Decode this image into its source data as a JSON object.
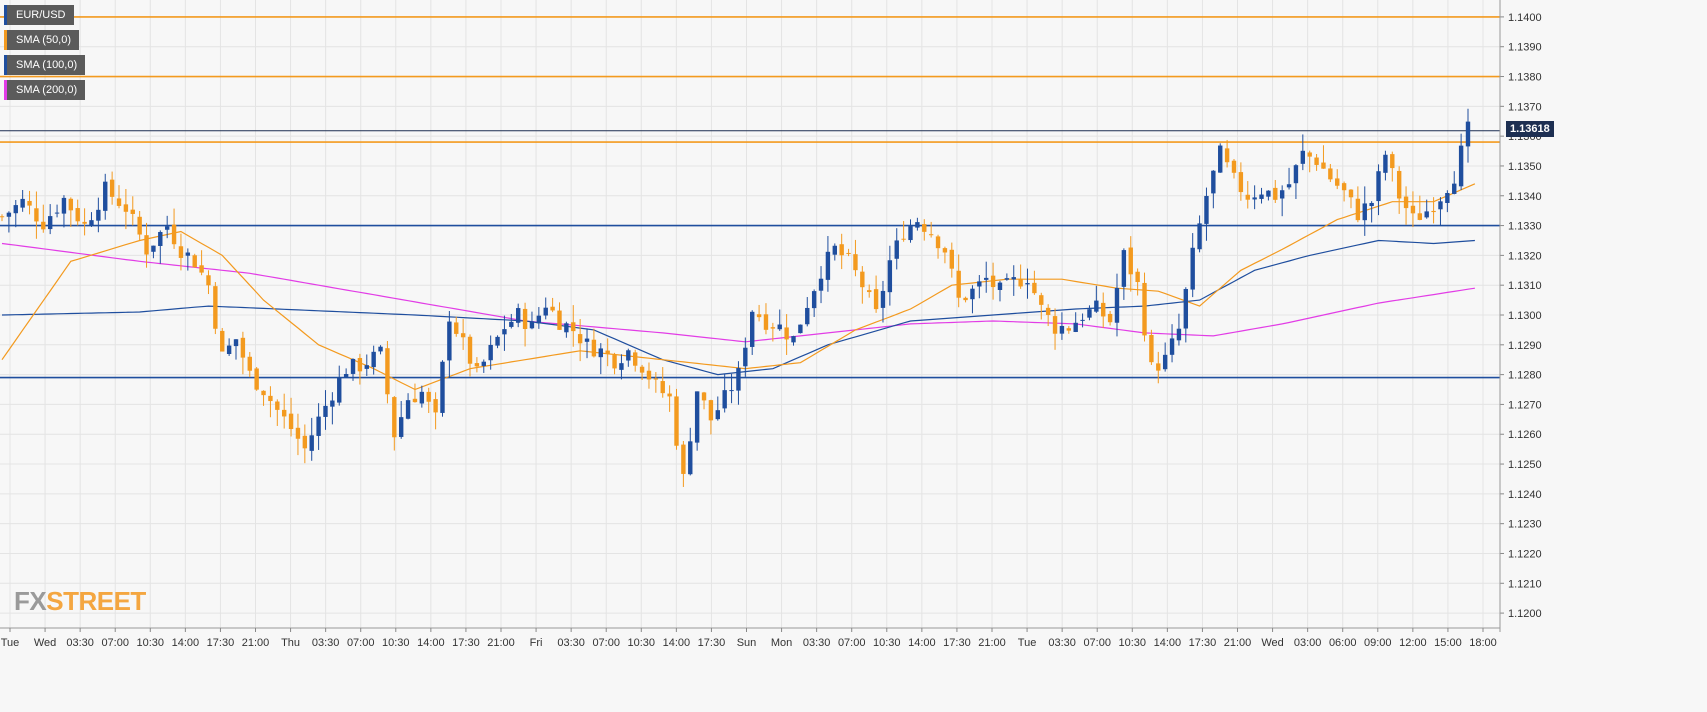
{
  "legend": [
    {
      "label": "EUR/USD",
      "color": "#1f4e9e"
    },
    {
      "label": "SMA (50,0)",
      "color": "#f39a1f"
    },
    {
      "label": "SMA (100,0)",
      "color": "#1f4e9e"
    },
    {
      "label": "SMA (200,0)",
      "color": "#e23de6"
    }
  ],
  "current_price": "1.13618",
  "logo": {
    "fx": "FX",
    "street": "STREET"
  },
  "colors": {
    "bull": "#1f4e9e",
    "bear": "#f39a1f",
    "sma50": "#f39a1f",
    "sma100": "#1f4e9e",
    "sma200": "#e23de6",
    "resistance": "#f39a1f",
    "support": "#1f4e9e",
    "price_line": "#1d2f52",
    "grid": "#e4e4e4"
  },
  "chart_data": {
    "type": "candlestick",
    "symbol": "EUR/USD",
    "ylim": [
      1.1195,
      1.1405
    ],
    "y_ticks": [
      "1.1200",
      "1.1210",
      "1.1220",
      "1.1230",
      "1.1240",
      "1.1250",
      "1.1260",
      "1.1270",
      "1.1280",
      "1.1290",
      "1.1300",
      "1.1310",
      "1.1320",
      "1.1330",
      "1.1340",
      "1.1350",
      "1.1360",
      "1.1370",
      "1.1380",
      "1.1390",
      "1.1400"
    ],
    "x_labels": [
      "Tue",
      "Wed",
      "03:30",
      "07:00",
      "10:30",
      "14:00",
      "17:30",
      "21:00",
      "Thu",
      "03:30",
      "07:00",
      "10:30",
      "14:00",
      "17:30",
      "21:00",
      "Fri",
      "03:30",
      "07:00",
      "10:30",
      "14:00",
      "17:30",
      "Sun",
      "Mon",
      "03:30",
      "07:00",
      "10:30",
      "14:00",
      "17:30",
      "21:00",
      "Tue",
      "03:30",
      "07:00",
      "10:30",
      "14:00",
      "17:30",
      "21:00",
      "Wed",
      "03:00",
      "06:00",
      "09:00",
      "12:00",
      "15:00",
      "18:00"
    ],
    "horizontal_levels": [
      {
        "value": 1.14,
        "color": "#f39a1f"
      },
      {
        "value": 1.138,
        "color": "#f39a1f"
      },
      {
        "value": 1.1358,
        "color": "#f39a1f"
      },
      {
        "value": 1.133,
        "color": "#1f4e9e"
      },
      {
        "value": 1.1279,
        "color": "#1f4e9e"
      }
    ],
    "last_price": 1.13618,
    "close_path": [
      [
        0,
        1.1333
      ],
      [
        3,
        1.1338
      ],
      [
        6,
        1.1331
      ],
      [
        9,
        1.1339
      ],
      [
        12,
        1.133
      ],
      [
        15,
        1.1342
      ],
      [
        18,
        1.1336
      ],
      [
        21,
        1.1322
      ],
      [
        24,
        1.133
      ],
      [
        26,
        1.1322
      ],
      [
        28,
        1.1318
      ],
      [
        30,
        1.131
      ],
      [
        32,
        1.1286
      ],
      [
        34,
        1.1292
      ],
      [
        36,
        1.128
      ],
      [
        38,
        1.1275
      ],
      [
        40,
        1.1268
      ],
      [
        42,
        1.1262
      ],
      [
        44,
        1.1255
      ],
      [
        46,
        1.1265
      ],
      [
        48,
        1.1274
      ],
      [
        50,
        1.1282
      ],
      [
        52,
        1.1283
      ],
      [
        55,
        1.1287
      ],
      [
        57,
        1.126
      ],
      [
        59,
        1.1272
      ],
      [
        61,
        1.1274
      ],
      [
        63,
        1.1265
      ],
      [
        65,
        1.13
      ],
      [
        67,
        1.129
      ],
      [
        69,
        1.128
      ],
      [
        71,
        1.1288
      ],
      [
        73,
        1.1296
      ],
      [
        75,
        1.13
      ],
      [
        77,
        1.1296
      ],
      [
        79,
        1.1304
      ],
      [
        81,
        1.1298
      ],
      [
        83,
        1.1295
      ],
      [
        85,
        1.129
      ],
      [
        87,
        1.1288
      ],
      [
        89,
        1.1285
      ],
      [
        91,
        1.1288
      ],
      [
        93,
        1.1283
      ],
      [
        95,
        1.1276
      ],
      [
        97,
        1.1272
      ],
      [
        99,
        1.1245
      ],
      [
        101,
        1.1275
      ],
      [
        103,
        1.1265
      ],
      [
        105,
        1.1272
      ],
      [
        107,
        1.128
      ],
      [
        109,
        1.1302
      ],
      [
        111,
        1.1298
      ],
      [
        113,
        1.1296
      ],
      [
        115,
        1.1292
      ],
      [
        117,
        1.1304
      ],
      [
        119,
        1.1315
      ],
      [
        121,
        1.1322
      ],
      [
        123,
        1.1318
      ],
      [
        125,
        1.131
      ],
      [
        127,
        1.13
      ],
      [
        129,
        1.1318
      ],
      [
        131,
        1.1328
      ],
      [
        133,
        1.1332
      ],
      [
        135,
        1.1328
      ],
      [
        137,
        1.1322
      ],
      [
        139,
        1.1305
      ],
      [
        141,
        1.1308
      ],
      [
        143,
        1.1312
      ],
      [
        145,
        1.1308
      ],
      [
        147,
        1.1311
      ],
      [
        149,
        1.1313
      ],
      [
        151,
        1.1302
      ],
      [
        153,
        1.1296
      ],
      [
        155,
        1.1296
      ],
      [
        157,
        1.13
      ],
      [
        159,
        1.1302
      ],
      [
        161,
        1.1298
      ],
      [
        163,
        1.132
      ],
      [
        165,
        1.131
      ],
      [
        167,
        1.1282
      ],
      [
        169,
        1.1285
      ],
      [
        171,
        1.1295
      ],
      [
        173,
        1.132
      ],
      [
        175,
        1.134
      ],
      [
        177,
        1.1354
      ],
      [
        179,
        1.1345
      ],
      [
        181,
        1.134
      ],
      [
        183,
        1.1342
      ],
      [
        185,
        1.134
      ],
      [
        187,
        1.1344
      ],
      [
        189,
        1.1354
      ],
      [
        191,
        1.1352
      ],
      [
        193,
        1.1346
      ],
      [
        195,
        1.1341
      ],
      [
        197,
        1.1334
      ],
      [
        199,
        1.1338
      ],
      [
        201,
        1.1354
      ],
      [
        203,
        1.134
      ],
      [
        205,
        1.1332
      ],
      [
        207,
        1.1335
      ],
      [
        209,
        1.134
      ],
      [
        211,
        1.1347
      ],
      [
        213,
        1.1362
      ]
    ],
    "sma50": [
      [
        0,
        1.1285
      ],
      [
        10,
        1.1318
      ],
      [
        20,
        1.1325
      ],
      [
        26,
        1.1328
      ],
      [
        32,
        1.132
      ],
      [
        38,
        1.1305
      ],
      [
        46,
        1.129
      ],
      [
        54,
        1.1282
      ],
      [
        60,
        1.1275
      ],
      [
        68,
        1.1282
      ],
      [
        76,
        1.1285
      ],
      [
        84,
        1.1288
      ],
      [
        92,
        1.1286
      ],
      [
        100,
        1.1284
      ],
      [
        108,
        1.1282
      ],
      [
        116,
        1.1284
      ],
      [
        124,
        1.1295
      ],
      [
        132,
        1.1302
      ],
      [
        138,
        1.131
      ],
      [
        146,
        1.1312
      ],
      [
        154,
        1.1312
      ],
      [
        162,
        1.1309
      ],
      [
        168,
        1.1308
      ],
      [
        174,
        1.1303
      ],
      [
        180,
        1.1315
      ],
      [
        186,
        1.1322
      ],
      [
        194,
        1.1332
      ],
      [
        202,
        1.1338
      ],
      [
        208,
        1.1338
      ],
      [
        214,
        1.1344
      ]
    ],
    "sma100": [
      [
        0,
        1.13
      ],
      [
        20,
        1.1301
      ],
      [
        30,
        1.1303
      ],
      [
        40,
        1.1302
      ],
      [
        60,
        1.13
      ],
      [
        76,
        1.1298
      ],
      [
        86,
        1.1295
      ],
      [
        96,
        1.1285
      ],
      [
        104,
        1.128
      ],
      [
        112,
        1.1282
      ],
      [
        120,
        1.129
      ],
      [
        132,
        1.1298
      ],
      [
        144,
        1.13
      ],
      [
        156,
        1.1302
      ],
      [
        166,
        1.1303
      ],
      [
        174,
        1.1305
      ],
      [
        182,
        1.1315
      ],
      [
        190,
        1.132
      ],
      [
        200,
        1.1325
      ],
      [
        208,
        1.1324
      ],
      [
        214,
        1.1325
      ]
    ],
    "sma200": [
      [
        0,
        1.1324
      ],
      [
        20,
        1.1318
      ],
      [
        36,
        1.1314
      ],
      [
        56,
        1.1306
      ],
      [
        76,
        1.1298
      ],
      [
        96,
        1.1294
      ],
      [
        108,
        1.1291
      ],
      [
        120,
        1.1294
      ],
      [
        132,
        1.1297
      ],
      [
        144,
        1.1298
      ],
      [
        156,
        1.1297
      ],
      [
        166,
        1.1294
      ],
      [
        176,
        1.1293
      ],
      [
        186,
        1.1297
      ],
      [
        200,
        1.1304
      ],
      [
        214,
        1.1309
      ]
    ]
  }
}
